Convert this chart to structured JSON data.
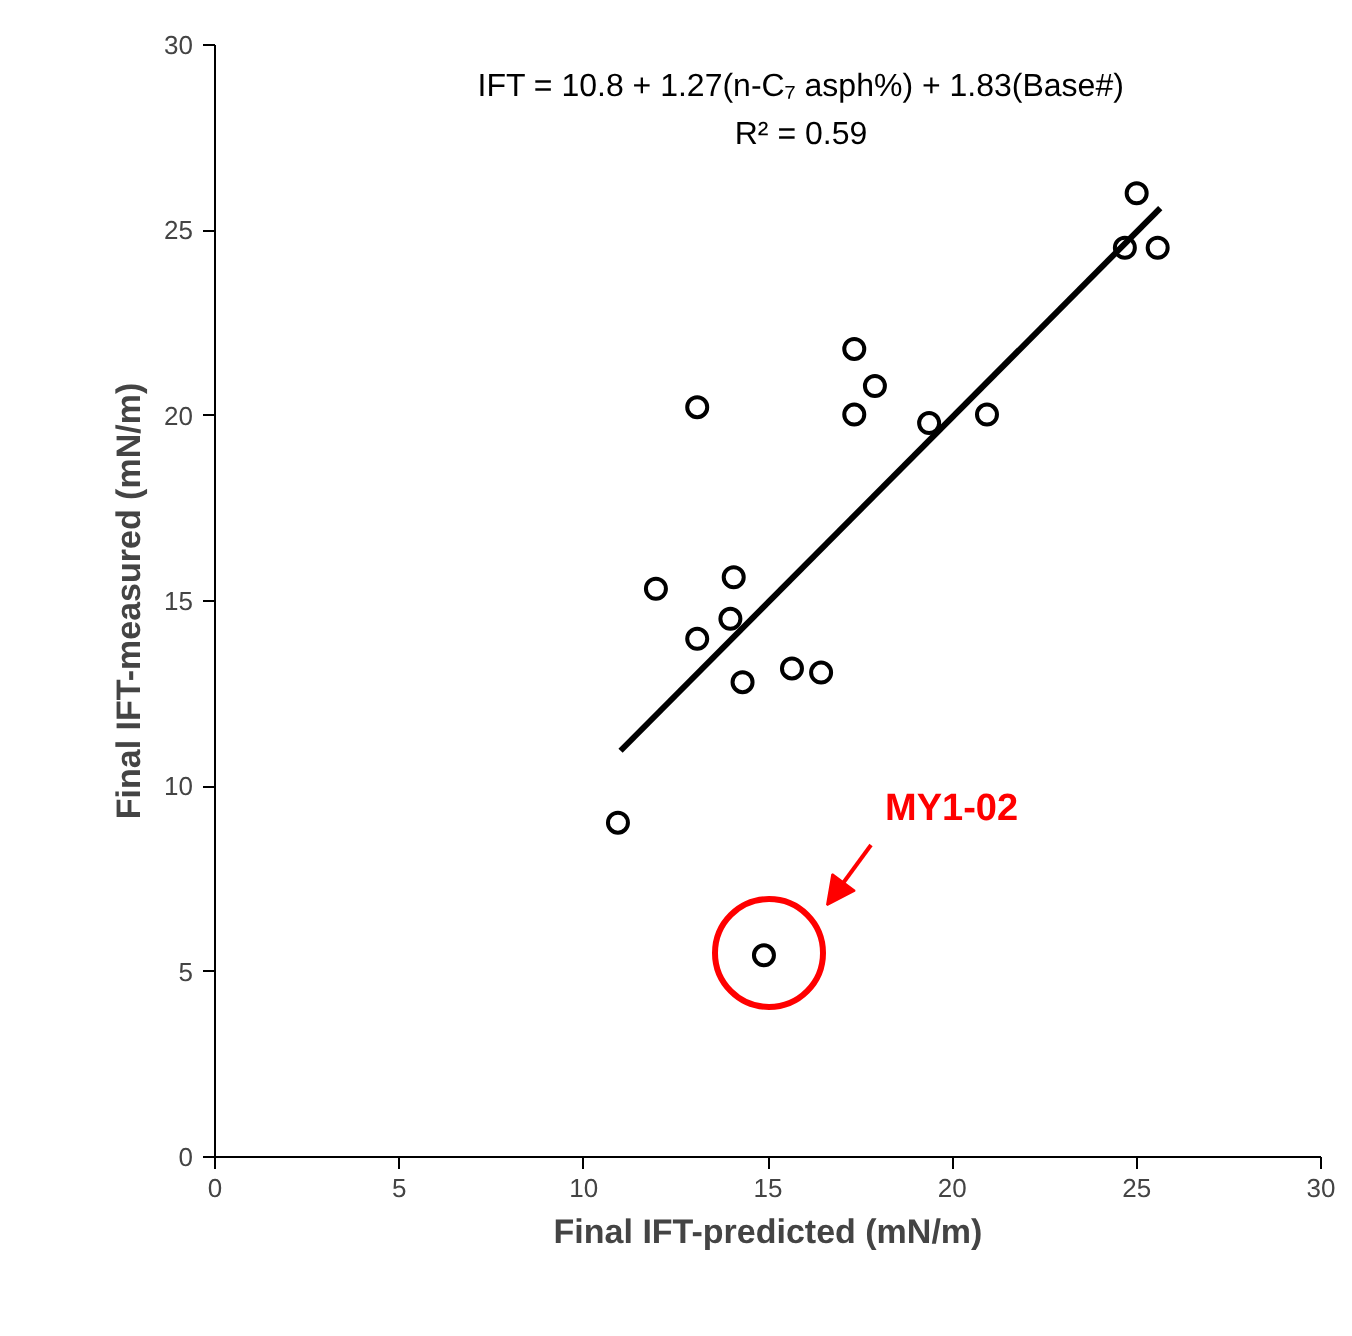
{
  "chart_data": {
    "type": "scatter",
    "xlabel": "Final IFT-predicted (mN/m)",
    "ylabel": "Final IFT-measured (mN/m)",
    "xlim": [
      0,
      30
    ],
    "ylim": [
      0,
      30
    ],
    "xticks": [
      0,
      5,
      10,
      15,
      20,
      25,
      30
    ],
    "yticks": [
      0,
      5,
      10,
      15,
      20,
      25,
      30
    ],
    "grid": false,
    "series": [
      {
        "color": "#000000",
        "marker": "circle",
        "x": [
          10.93,
          14.89,
          11.96,
          13.08,
          13.08,
          14.07,
          13.98,
          14.31,
          15.65,
          16.44,
          17.34,
          17.34,
          17.9,
          19.37,
          20.94,
          24.68,
          25.0,
          25.57
        ],
        "values": [
          9.02,
          5.44,
          15.33,
          13.98,
          20.23,
          15.64,
          14.52,
          12.81,
          13.18,
          13.07,
          21.8,
          20.03,
          20.8,
          19.8,
          20.03,
          24.53,
          26.0,
          24.53
        ]
      },
      {
        "type": "line",
        "color": "#000000",
        "x": [
          11.0,
          25.64
        ],
        "values": [
          10.96,
          25.6
        ]
      }
    ],
    "annotations": [
      "IFT = 10.8 + 1.27(n-C₇ asph%) + 1.83(Base#)",
      "R² = 0.59",
      "MY1-02"
    ]
  }
}
